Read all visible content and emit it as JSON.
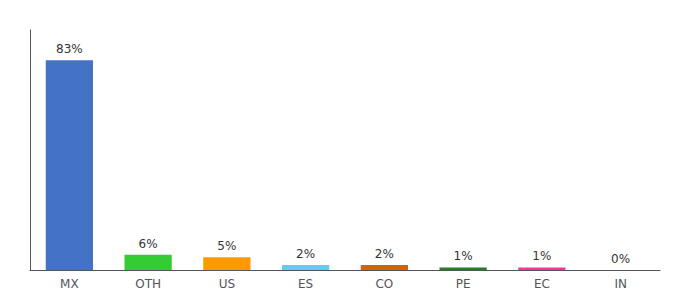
{
  "chart_data": {
    "type": "bar",
    "categories": [
      "MX",
      "OTH",
      "US",
      "ES",
      "CO",
      "PE",
      "EC",
      "IN"
    ],
    "values": [
      83,
      6,
      5,
      2,
      2,
      1,
      1,
      0
    ],
    "value_labels": [
      "83%",
      "6%",
      "5%",
      "2%",
      "2%",
      "1%",
      "1%",
      "0%"
    ],
    "colors": [
      "#4472c4",
      "#33cc33",
      "#ff9900",
      "#66ccee",
      "#cc6600",
      "#2a7a2a",
      "#ff3399",
      "#aaaaaa"
    ],
    "ylim": [
      0,
      95
    ],
    "grid": false,
    "data_labels": true,
    "tick_labels": "x"
  }
}
